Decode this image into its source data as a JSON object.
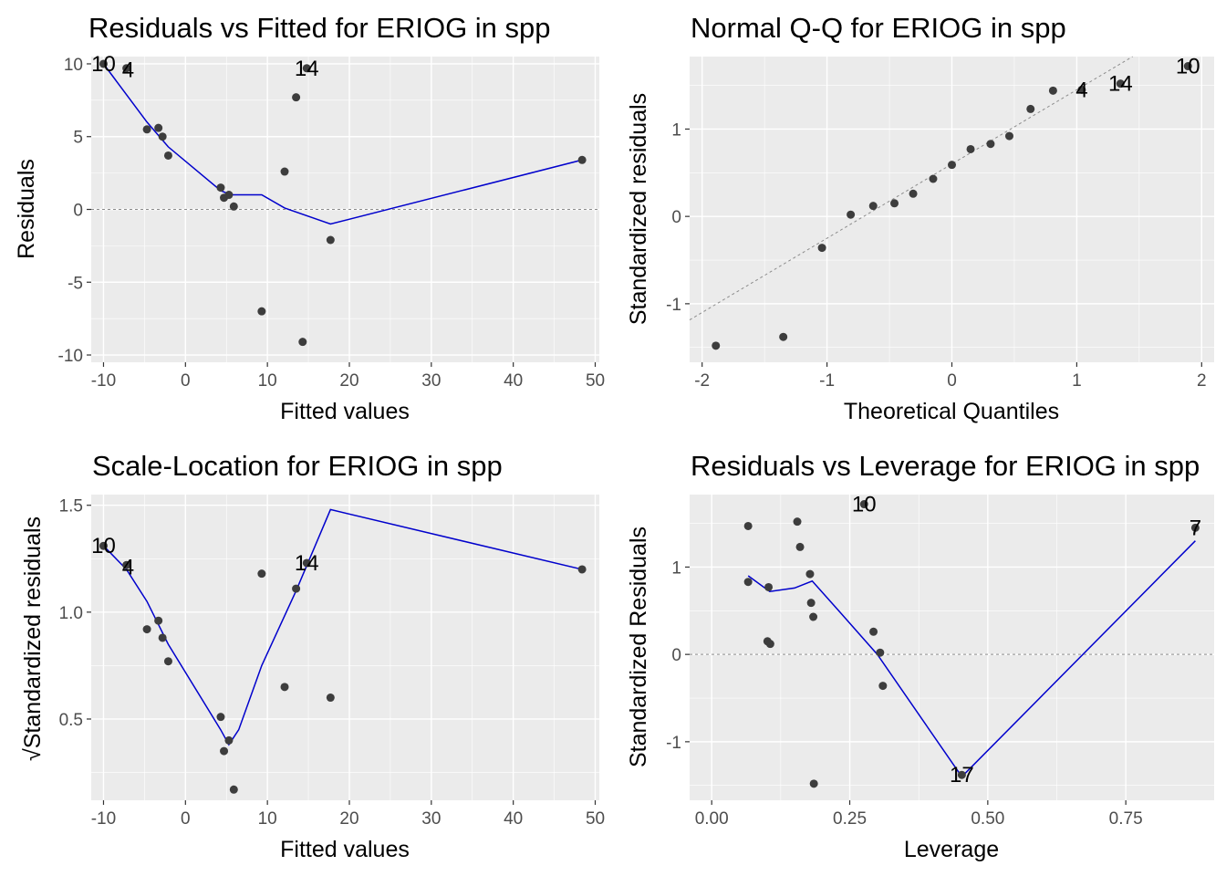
{
  "chart_data": [
    {
      "type": "scatter",
      "title": "Residuals vs Fitted for ERIOG in spp",
      "xlabel": "Fitted values",
      "ylabel": "Residuals",
      "xlim": [
        -11.5,
        50.5
      ],
      "ylim": [
        -10.5,
        10.5
      ],
      "xticks": [
        -10,
        0,
        10,
        20,
        30,
        40,
        50
      ],
      "xtick_labels": [
        "-10",
        "0",
        "10",
        "20",
        "30",
        "40",
        "50"
      ],
      "yticks": [
        -10,
        -5,
        0,
        5,
        10
      ],
      "ytick_labels": [
        "-10",
        "-5",
        "0",
        "5",
        "10"
      ],
      "grid": true,
      "reference_line": {
        "kind": "hline",
        "value": 0
      },
      "points": [
        {
          "x": -10.0,
          "y": 10.0
        },
        {
          "x": -7.2,
          "y": 9.7
        },
        {
          "x": -4.7,
          "y": 5.5
        },
        {
          "x": -3.3,
          "y": 5.6
        },
        {
          "x": -2.8,
          "y": 5.0
        },
        {
          "x": -2.1,
          "y": 3.7
        },
        {
          "x": 4.3,
          "y": 1.5
        },
        {
          "x": 4.7,
          "y": 0.8
        },
        {
          "x": 5.3,
          "y": 1.0
        },
        {
          "x": 5.9,
          "y": 0.2
        },
        {
          "x": 9.3,
          "y": -7.0
        },
        {
          "x": 12.1,
          "y": 2.6
        },
        {
          "x": 13.5,
          "y": 7.7
        },
        {
          "x": 14.3,
          "y": -9.1
        },
        {
          "x": 14.8,
          "y": 9.7
        },
        {
          "x": 17.7,
          "y": -2.1
        },
        {
          "x": 48.4,
          "y": 3.4
        }
      ],
      "smooth_line": [
        {
          "x": -10.0,
          "y": 10.0
        },
        {
          "x": -4.7,
          "y": 6.0
        },
        {
          "x": -2.1,
          "y": 4.3
        },
        {
          "x": 4.3,
          "y": 1.3
        },
        {
          "x": 5.5,
          "y": 1.0
        },
        {
          "x": 9.3,
          "y": 1.0
        },
        {
          "x": 12.1,
          "y": 0.1
        },
        {
          "x": 17.7,
          "y": -1.0
        },
        {
          "x": 48.4,
          "y": 3.4
        }
      ],
      "point_labels": [
        {
          "text": "10",
          "x": -10.0,
          "y": 10.0
        },
        {
          "text": "4",
          "x": -7.0,
          "y": 9.6
        },
        {
          "text": "14",
          "x": 14.8,
          "y": 9.7
        }
      ],
      "colors": {
        "points": "#3d3d3d",
        "smooth": "#0000cc",
        "refline": "#8c8c8c"
      }
    },
    {
      "type": "scatter",
      "title": "Normal Q-Q for ERIOG in spp",
      "xlabel": "Theoretical Quantiles",
      "ylabel": "Standardized residuals",
      "xlim": [
        -2.1,
        2.1
      ],
      "ylim": [
        -1.67,
        1.83
      ],
      "xticks": [
        -2,
        -1,
        0,
        1,
        2
      ],
      "xtick_labels": [
        "-2",
        "-1",
        "0",
        "1",
        "2"
      ],
      "yticks": [
        -1,
        0,
        1
      ],
      "ytick_labels": [
        "-1",
        "0",
        "1"
      ],
      "grid": true,
      "reference_line": {
        "kind": "abline",
        "intercept": 0.6,
        "slope": 0.85
      },
      "points": [
        {
          "x": -1.89,
          "y": -1.48
        },
        {
          "x": -1.35,
          "y": -1.38
        },
        {
          "x": -1.04,
          "y": -0.36
        },
        {
          "x": -0.81,
          "y": 0.02
        },
        {
          "x": -0.63,
          "y": 0.12
        },
        {
          "x": -0.46,
          "y": 0.15
        },
        {
          "x": -0.31,
          "y": 0.26
        },
        {
          "x": -0.15,
          "y": 0.43
        },
        {
          "x": 0.0,
          "y": 0.59
        },
        {
          "x": 0.15,
          "y": 0.77
        },
        {
          "x": 0.31,
          "y": 0.83
        },
        {
          "x": 0.46,
          "y": 0.92
        },
        {
          "x": 0.63,
          "y": 1.23
        },
        {
          "x": 0.81,
          "y": 1.44
        },
        {
          "x": 1.04,
          "y": 1.45
        },
        {
          "x": 1.35,
          "y": 1.52
        },
        {
          "x": 1.89,
          "y": 1.72
        }
      ],
      "point_labels": [
        {
          "text": "4",
          "x": 1.04,
          "y": 1.45
        },
        {
          "text": "14",
          "x": 1.35,
          "y": 1.52
        },
        {
          "text": "10",
          "x": 1.89,
          "y": 1.72
        }
      ],
      "colors": {
        "points": "#3d3d3d",
        "refline": "#8c8c8c"
      }
    },
    {
      "type": "scatter",
      "title": "Scale-Location for ERIOG in spp",
      "xlabel": "Fitted values",
      "ylabel": "√Standardized residuals",
      "xlim": [
        -11.5,
        50.5
      ],
      "ylim": [
        0.12,
        1.55
      ],
      "xticks": [
        -10,
        0,
        10,
        20,
        30,
        40,
        50
      ],
      "xtick_labels": [
        "-10",
        "0",
        "10",
        "20",
        "30",
        "40",
        "50"
      ],
      "yticks": [
        0.5,
        1.0,
        1.5
      ],
      "ytick_labels": [
        "0.5",
        "1.0",
        "1.5"
      ],
      "grid": true,
      "points": [
        {
          "x": -10.0,
          "y": 1.31
        },
        {
          "x": -7.2,
          "y": 1.22
        },
        {
          "x": -4.7,
          "y": 0.92
        },
        {
          "x": -3.3,
          "y": 0.96
        },
        {
          "x": -2.8,
          "y": 0.88
        },
        {
          "x": -2.1,
          "y": 0.77
        },
        {
          "x": 4.3,
          "y": 0.51
        },
        {
          "x": 4.7,
          "y": 0.35
        },
        {
          "x": 5.3,
          "y": 0.4
        },
        {
          "x": 5.9,
          "y": 0.17
        },
        {
          "x": 9.3,
          "y": 1.18
        },
        {
          "x": 12.1,
          "y": 0.65
        },
        {
          "x": 13.5,
          "y": 1.11
        },
        {
          "x": 14.8,
          "y": 1.23
        },
        {
          "x": 17.7,
          "y": 0.6
        },
        {
          "x": 48.4,
          "y": 1.2
        }
      ],
      "smooth_line": [
        {
          "x": -10.0,
          "y": 1.31
        },
        {
          "x": -7.2,
          "y": 1.2
        },
        {
          "x": -4.7,
          "y": 1.05
        },
        {
          "x": -2.1,
          "y": 0.85
        },
        {
          "x": 4.3,
          "y": 0.45
        },
        {
          "x": 5.3,
          "y": 0.38
        },
        {
          "x": 6.5,
          "y": 0.45
        },
        {
          "x": 9.3,
          "y": 0.75
        },
        {
          "x": 13.5,
          "y": 1.1
        },
        {
          "x": 17.7,
          "y": 1.48
        },
        {
          "x": 48.4,
          "y": 1.2
        }
      ],
      "point_labels": [
        {
          "text": "10",
          "x": -10.0,
          "y": 1.31
        },
        {
          "text": "4",
          "x": -7.0,
          "y": 1.21
        },
        {
          "text": "14",
          "x": 14.8,
          "y": 1.23
        }
      ],
      "colors": {
        "points": "#3d3d3d",
        "smooth": "#0000cc"
      }
    },
    {
      "type": "scatter",
      "title": "Residuals vs Leverage for ERIOG in spp",
      "xlabel": "Leverage",
      "ylabel": "Standardized Residuals",
      "xlim": [
        -0.04,
        0.91
      ],
      "ylim": [
        -1.67,
        1.83
      ],
      "xticks": [
        0.0,
        0.25,
        0.5,
        0.75
      ],
      "xtick_labels": [
        "0.00",
        "0.25",
        "0.50",
        "0.75"
      ],
      "yticks": [
        -1,
        0,
        1
      ],
      "ytick_labels": [
        "-1",
        "0",
        "1"
      ],
      "grid": true,
      "reference_line": {
        "kind": "hline",
        "value": 0
      },
      "points": [
        {
          "x": 0.066,
          "y": 1.47
        },
        {
          "x": 0.066,
          "y": 0.83
        },
        {
          "x": 0.101,
          "y": 0.15
        },
        {
          "x": 0.103,
          "y": 0.77
        },
        {
          "x": 0.106,
          "y": 0.12
        },
        {
          "x": 0.155,
          "y": 1.52
        },
        {
          "x": 0.16,
          "y": 1.23
        },
        {
          "x": 0.178,
          "y": 0.92
        },
        {
          "x": 0.18,
          "y": 0.59
        },
        {
          "x": 0.184,
          "y": 0.43
        },
        {
          "x": 0.185,
          "y": -1.48
        },
        {
          "x": 0.276,
          "y": 1.72
        },
        {
          "x": 0.293,
          "y": 0.26
        },
        {
          "x": 0.305,
          "y": 0.02
        },
        {
          "x": 0.31,
          "y": -0.36
        },
        {
          "x": 0.453,
          "y": -1.38
        },
        {
          "x": 0.876,
          "y": 1.45
        }
      ],
      "smooth_line": [
        {
          "x": 0.066,
          "y": 0.9
        },
        {
          "x": 0.105,
          "y": 0.72
        },
        {
          "x": 0.15,
          "y": 0.76
        },
        {
          "x": 0.182,
          "y": 0.84
        },
        {
          "x": 0.23,
          "y": 0.5
        },
        {
          "x": 0.3,
          "y": 0.0
        },
        {
          "x": 0.453,
          "y": -1.4
        },
        {
          "x": 0.876,
          "y": 1.3
        }
      ],
      "point_labels": [
        {
          "text": "10",
          "x": 0.276,
          "y": 1.72
        },
        {
          "text": "17",
          "x": 0.453,
          "y": -1.38
        },
        {
          "text": "7",
          "x": 0.876,
          "y": 1.45
        }
      ],
      "colors": {
        "points": "#3d3d3d",
        "smooth": "#0000cc",
        "refline": "#8c8c8c"
      }
    }
  ]
}
